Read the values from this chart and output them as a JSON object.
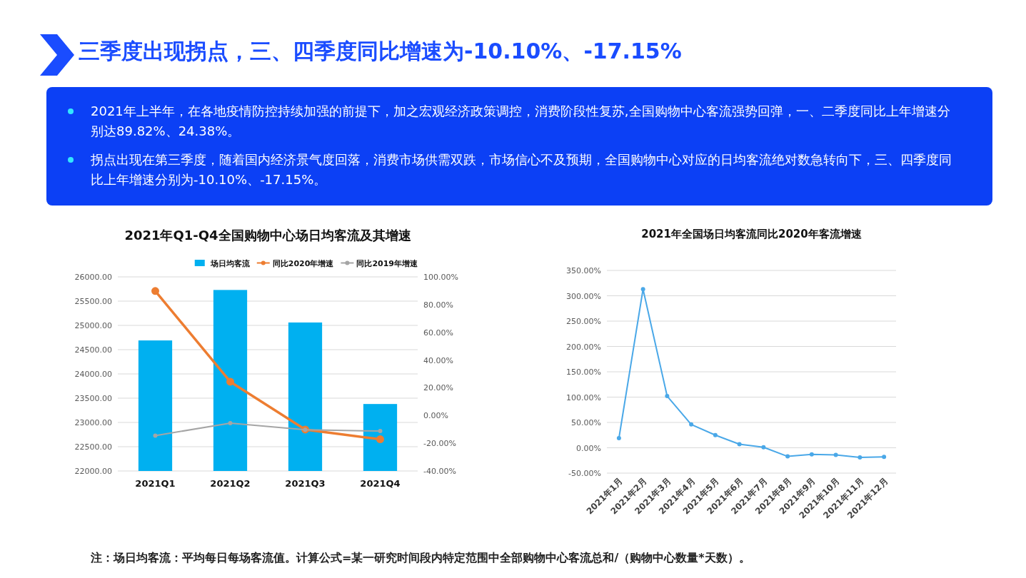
{
  "chart_data": [
    {
      "type": "other",
      "title": "三季度出现拐点，三、四季度同比增速为-10.10%、-17.15%",
      "annotations": [
        "2021年上半年，在各地疫情防控持续加强的前提下，加之宏观经济政策调控，消费阶段性复苏,全国购物中心客流强势回弹，一、二季度同比上年增速分别达89.82%、24.38%。",
        "拐点出现在第三季度，随着国内经济景气度回落，消费市场供需双跌，市场信心不及预期，全国购物中心对应的日均客流绝对数急转向下，三、四季度同比上年增速分别为-10.10%、-17.15%。"
      ]
    },
    {
      "type": "bar",
      "title": "2021年Q1-Q4全国购物中心场日均客流及其增速",
      "categories": [
        "2021Q1",
        "2021Q2",
        "2021Q3",
        "2021Q4"
      ],
      "series": [
        {
          "name": "场日均客流",
          "type": "bar",
          "color": "#00b0f0",
          "values": [
            24690,
            25730,
            25060,
            23380
          ]
        },
        {
          "name": "同比2020年增速",
          "type": "line",
          "axis": "y2",
          "color": "#ed7d31",
          "values": [
            89.82,
            24.38,
            -10.1,
            -17.15
          ]
        },
        {
          "name": "同比2019年增速",
          "type": "line",
          "axis": "y2",
          "color": "#a5a5a5",
          "values": [
            -14.5,
            -5.5,
            -10.3,
            -11.2
          ]
        }
      ],
      "ylim": [
        22000,
        26000
      ],
      "yticks": [
        {
          "value": 22000,
          "label": "22000.00"
        },
        {
          "value": 22500,
          "label": "22500.00"
        },
        {
          "value": 23000,
          "label": "23000.00"
        },
        {
          "value": 23500,
          "label": "23500.00"
        },
        {
          "value": 24000,
          "label": "24000.00"
        },
        {
          "value": 24500,
          "label": "24500.00"
        },
        {
          "value": 25000,
          "label": "25000.00"
        },
        {
          "value": 25500,
          "label": "25500.00"
        },
        {
          "value": 26000,
          "label": "26000.00"
        }
      ],
      "y2lim": [
        -40,
        100
      ],
      "y2ticks": [
        {
          "value": -40,
          "label": "-40.00%"
        },
        {
          "value": -20,
          "label": "-20.00%"
        },
        {
          "value": 0,
          "label": "0.00%"
        },
        {
          "value": 20,
          "label": "20.00%"
        },
        {
          "value": 40,
          "label": "40.00%"
        },
        {
          "value": 60,
          "label": "60.00%"
        },
        {
          "value": 80,
          "label": "80.00%"
        },
        {
          "value": 100,
          "label": "100.00%"
        }
      ],
      "grid": "y",
      "legend": "top right",
      "marker": "circle"
    },
    {
      "type": "line",
      "title": "2021年全国场日均客流同比2020年客流增速",
      "categories": [
        "2021年1月",
        "2021年2月",
        "2021年3月",
        "2021年4月",
        "2021年5月",
        "2021年6月",
        "2021年7月",
        "2021年8月",
        "2021年9月",
        "2021年10月",
        "2021年11月",
        "2021年12月"
      ],
      "series": [
        {
          "color": "#4aa8e8",
          "values": [
            19,
            313,
            102,
            46,
            25,
            7,
            1,
            -17,
            -13,
            -14,
            -19,
            -18
          ]
        }
      ],
      "ylim": [
        -50,
        350
      ],
      "yticks": [
        {
          "value": -50,
          "label": "-50.00%"
        },
        {
          "value": 0,
          "label": "0.00%"
        },
        {
          "value": 50,
          "label": "50.00%"
        },
        {
          "value": 100,
          "label": "100.00%"
        },
        {
          "value": 150,
          "label": "150.00%"
        },
        {
          "value": 200,
          "label": "200.00%"
        },
        {
          "value": 250,
          "label": "250.00%"
        },
        {
          "value": 300,
          "label": "300.00%"
        },
        {
          "value": 350,
          "label": "350.00%"
        }
      ],
      "grid": "y",
      "marker": "circle"
    },
    {
      "type": "other",
      "annotations": [
        "注：场日均客流：平均每日每场客流值。计算公式=某一研究时间段内特定范围中全部购物中心客流总和/（购物中心数量*天数）。"
      ]
    }
  ]
}
